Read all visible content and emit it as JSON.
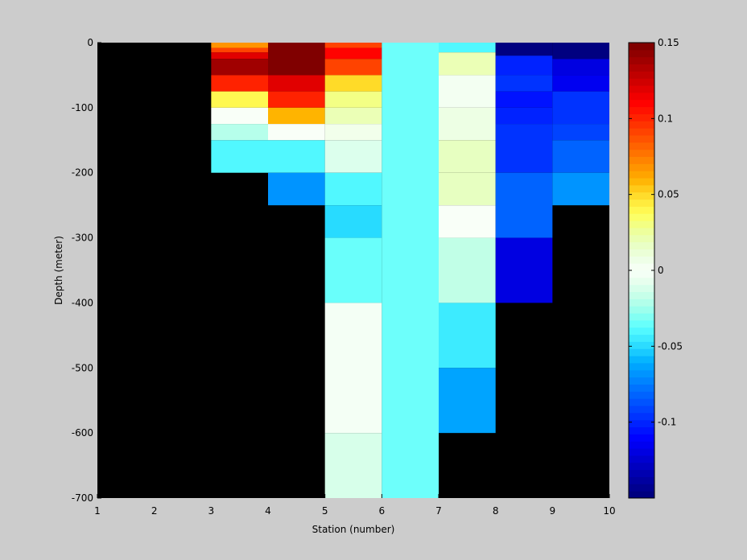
{
  "chart_data": {
    "type": "heatmap",
    "title": "",
    "xlabel": "Station (number)",
    "ylabel": "Depth (meter)",
    "xlim": [
      1,
      10
    ],
    "ylim": [
      -700,
      0
    ],
    "x_ticks": [
      "1",
      "2",
      "3",
      "4",
      "5",
      "6",
      "7",
      "8",
      "9",
      "10"
    ],
    "y_ticks": [
      "0",
      "-100",
      "-200",
      "-300",
      "-400",
      "-500",
      "-600",
      "-700"
    ],
    "background": "#000000",
    "colormap": "jet",
    "clim": [
      -0.15,
      0.15
    ],
    "colorbar": {
      "location": "right",
      "tick_values": [
        0.15,
        0.1,
        0.05,
        0,
        -0.05,
        -0.1
      ],
      "tick_labels": [
        "0.15",
        "0.1",
        "0.05",
        "0",
        "-0.05",
        "-0.1"
      ]
    },
    "cells": [
      {
        "x": [
          3,
          4
        ],
        "y": [
          -8,
          0
        ],
        "v": 0.07
      },
      {
        "x": [
          3,
          4
        ],
        "y": [
          -15,
          -8
        ],
        "v": 0.09
      },
      {
        "x": [
          3,
          4
        ],
        "y": [
          -25,
          -15
        ],
        "v": 0.12
      },
      {
        "x": [
          3,
          4
        ],
        "y": [
          -50,
          -25
        ],
        "v": 0.14
      },
      {
        "x": [
          3,
          4
        ],
        "y": [
          -75,
          -50
        ],
        "v": 0.1
      },
      {
        "x": [
          3,
          4
        ],
        "y": [
          -100,
          -75
        ],
        "v": 0.04
      },
      {
        "x": [
          3,
          4
        ],
        "y": [
          -125,
          -100
        ],
        "v": 0.0
      },
      {
        "x": [
          3,
          4
        ],
        "y": [
          -150,
          -125
        ],
        "v": -0.02
      },
      {
        "x": [
          3,
          4
        ],
        "y": [
          -200,
          -150
        ],
        "v": -0.04
      },
      {
        "x": [
          4,
          5
        ],
        "y": [
          -50,
          0
        ],
        "v": 0.15
      },
      {
        "x": [
          4,
          5
        ],
        "y": [
          -75,
          -50
        ],
        "v": 0.12
      },
      {
        "x": [
          4,
          5
        ],
        "y": [
          -100,
          -75
        ],
        "v": 0.1
      },
      {
        "x": [
          4,
          5
        ],
        "y": [
          -125,
          -100
        ],
        "v": 0.06
      },
      {
        "x": [
          4,
          5
        ],
        "y": [
          -150,
          -125
        ],
        "v": 0.0
      },
      {
        "x": [
          4,
          5
        ],
        "y": [
          -200,
          -150
        ],
        "v": -0.04
      },
      {
        "x": [
          4,
          5
        ],
        "y": [
          -250,
          -200
        ],
        "v": -0.07
      },
      {
        "x": [
          5,
          6
        ],
        "y": [
          -8,
          0
        ],
        "v": 0.09
      },
      {
        "x": [
          5,
          6
        ],
        "y": [
          -25,
          -8
        ],
        "v": 0.11
      },
      {
        "x": [
          5,
          6
        ],
        "y": [
          -50,
          -25
        ],
        "v": 0.09
      },
      {
        "x": [
          5,
          6
        ],
        "y": [
          -75,
          -50
        ],
        "v": 0.05
      },
      {
        "x": [
          5,
          6
        ],
        "y": [
          -100,
          -75
        ],
        "v": 0.03
      },
      {
        "x": [
          5,
          6
        ],
        "y": [
          -125,
          -100
        ],
        "v": 0.02
      },
      {
        "x": [
          5,
          6
        ],
        "y": [
          -150,
          -125
        ],
        "v": 0.005
      },
      {
        "x": [
          5,
          6
        ],
        "y": [
          -200,
          -150
        ],
        "v": -0.01
      },
      {
        "x": [
          5,
          6
        ],
        "y": [
          -250,
          -200
        ],
        "v": -0.04
      },
      {
        "x": [
          5,
          6
        ],
        "y": [
          -300,
          -250
        ],
        "v": -0.05
      },
      {
        "x": [
          5,
          6
        ],
        "y": [
          -400,
          -300
        ],
        "v": -0.035
      },
      {
        "x": [
          5,
          6
        ],
        "y": [
          -600,
          -400
        ],
        "v": -0.002
      },
      {
        "x": [
          5,
          6
        ],
        "y": [
          -700,
          -600
        ],
        "v": -0.012
      },
      {
        "x": [
          6,
          7
        ],
        "y": [
          -700,
          0
        ],
        "v": -0.034
      },
      {
        "x": [
          7,
          8
        ],
        "y": [
          -15,
          0
        ],
        "v": -0.04
      },
      {
        "x": [
          7,
          8
        ],
        "y": [
          -50,
          -15
        ],
        "v": 0.02
      },
      {
        "x": [
          7,
          8
        ],
        "y": [
          -100,
          -50
        ],
        "v": 0.003
      },
      {
        "x": [
          7,
          8
        ],
        "y": [
          -150,
          -100
        ],
        "v": 0.008
      },
      {
        "x": [
          7,
          8
        ],
        "y": [
          -200,
          -150
        ],
        "v": 0.018
      },
      {
        "x": [
          7,
          8
        ],
        "y": [
          -250,
          -200
        ],
        "v": 0.018
      },
      {
        "x": [
          7,
          8
        ],
        "y": [
          -300,
          -250
        ],
        "v": 0.0
      },
      {
        "x": [
          7,
          8
        ],
        "y": [
          -400,
          -300
        ],
        "v": -0.018
      },
      {
        "x": [
          7,
          8
        ],
        "y": [
          -500,
          -400
        ],
        "v": -0.045
      },
      {
        "x": [
          7,
          8
        ],
        "y": [
          -600,
          -500
        ],
        "v": -0.063
      },
      {
        "x": [
          8,
          9
        ],
        "y": [
          -20,
          0
        ],
        "v": -0.15
      },
      {
        "x": [
          8,
          9
        ],
        "y": [
          -50,
          -20
        ],
        "v": -0.1
      },
      {
        "x": [
          8,
          9
        ],
        "y": [
          -75,
          -50
        ],
        "v": -0.095
      },
      {
        "x": [
          8,
          9
        ],
        "y": [
          -100,
          -75
        ],
        "v": -0.105
      },
      {
        "x": [
          8,
          9
        ],
        "y": [
          -125,
          -100
        ],
        "v": -0.1
      },
      {
        "x": [
          8,
          9
        ],
        "y": [
          -200,
          -125
        ],
        "v": -0.095
      },
      {
        "x": [
          8,
          9
        ],
        "y": [
          -300,
          -200
        ],
        "v": -0.08
      },
      {
        "x": [
          8,
          9
        ],
        "y": [
          -400,
          -300
        ],
        "v": -0.12
      },
      {
        "x": [
          9,
          10
        ],
        "y": [
          -25,
          0
        ],
        "v": -0.15
      },
      {
        "x": [
          9,
          10
        ],
        "y": [
          -50,
          -25
        ],
        "v": -0.12
      },
      {
        "x": [
          9,
          10
        ],
        "y": [
          -75,
          -50
        ],
        "v": -0.115
      },
      {
        "x": [
          9,
          10
        ],
        "y": [
          -125,
          -75
        ],
        "v": -0.095
      },
      {
        "x": [
          9,
          10
        ],
        "y": [
          -150,
          -125
        ],
        "v": -0.09
      },
      {
        "x": [
          9,
          10
        ],
        "y": [
          -200,
          -150
        ],
        "v": -0.08
      },
      {
        "x": [
          9,
          10
        ],
        "y": [
          -250,
          -200
        ],
        "v": -0.07
      }
    ]
  }
}
